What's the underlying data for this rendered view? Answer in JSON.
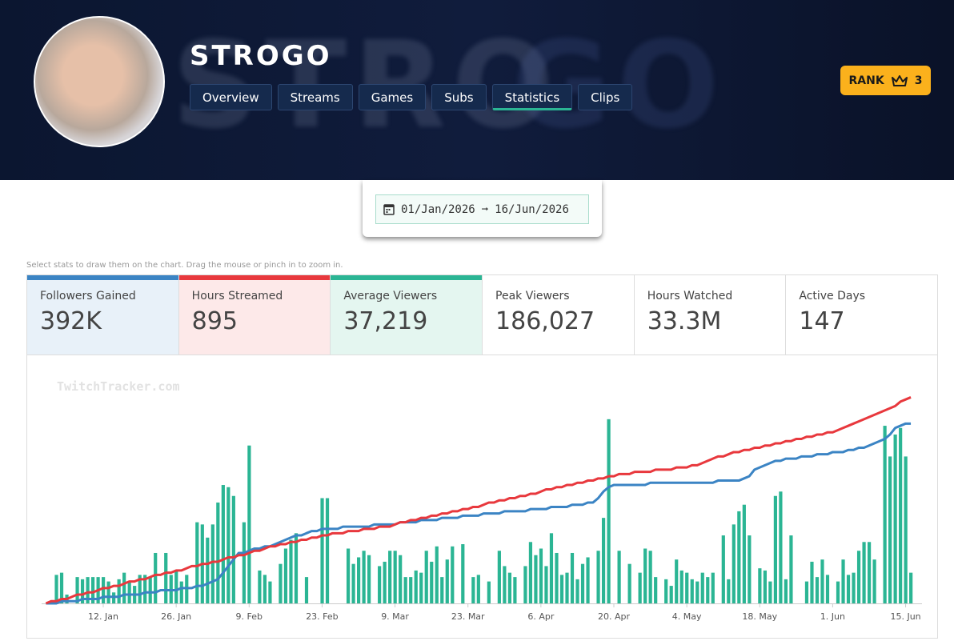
{
  "header": {
    "name": "STROGO",
    "tabs": [
      "Overview",
      "Streams",
      "Games",
      "Subs",
      "Statistics",
      "Clips"
    ],
    "active_tab": 4,
    "rank_label": "RANK",
    "rank": "3"
  },
  "date_range": {
    "start": "01/Jan/2026",
    "separator": "➞",
    "end": "16/Jun/2026"
  },
  "hint": "Select stats to draw them on the chart. Drag the mouse or pinch in to zoom in.",
  "stats": [
    {
      "label": "Followers Gained",
      "value": "392K"
    },
    {
      "label": "Hours Streamed",
      "value": "895"
    },
    {
      "label": "Average Viewers",
      "value": "37,219"
    },
    {
      "label": "Peak Viewers",
      "value": "186,027"
    },
    {
      "label": "Hours Watched",
      "value": "33.3M"
    },
    {
      "label": "Active Days",
      "value": "147"
    }
  ],
  "chart_data": {
    "type": "bar",
    "watermark": "TwitchTracker.com",
    "ylim": [
      0,
      100
    ],
    "categories": [
      null,
      null,
      null,
      null,
      null,
      null,
      null,
      null,
      null,
      null,
      null,
      "12. Jan",
      null,
      null,
      null,
      null,
      null,
      null,
      null,
      null,
      null,
      null,
      null,
      null,
      null,
      "26. Jan",
      null,
      null,
      null,
      null,
      null,
      null,
      null,
      null,
      null,
      null,
      null,
      null,
      null,
      "9. Feb",
      null,
      null,
      null,
      null,
      null,
      null,
      null,
      null,
      null,
      null,
      null,
      null,
      null,
      "23. Feb",
      null,
      null,
      null,
      null,
      null,
      null,
      null,
      null,
      null,
      null,
      null,
      null,
      null,
      "9. Mar",
      null,
      null,
      null,
      null,
      null,
      null,
      null,
      null,
      null,
      null,
      null,
      null,
      null,
      "23. Mar",
      null,
      null,
      null,
      null,
      null,
      null,
      null,
      null,
      null,
      null,
      null,
      null,
      null,
      "6. Apr",
      null,
      null,
      null,
      null,
      null,
      null,
      null,
      null,
      null,
      null,
      null,
      null,
      null,
      "20. Apr",
      null,
      null,
      null,
      null,
      null,
      null,
      null,
      null,
      null,
      null,
      null,
      null,
      null,
      "4. May",
      null,
      null,
      null,
      null,
      null,
      null,
      null,
      null,
      null,
      null,
      null,
      null,
      null,
      "18. May",
      null,
      null,
      null,
      null,
      null,
      null,
      null,
      null,
      null,
      null,
      null,
      null,
      null,
      "1. Jun",
      null,
      null,
      null,
      null,
      null,
      null,
      null,
      null,
      null,
      null,
      null,
      null,
      null,
      "15. Jun",
      null
    ],
    "series": [
      {
        "type": "line",
        "color": "#3b84c4",
        "values": [
          0,
          0,
          0,
          1,
          1,
          1,
          1,
          2,
          2,
          2,
          2,
          3,
          3,
          3,
          3,
          4,
          4,
          4,
          4,
          5,
          5,
          5,
          6,
          6,
          6,
          6,
          7,
          7,
          7,
          8,
          8,
          9,
          10,
          11,
          14,
          17,
          20,
          23,
          23,
          24,
          25,
          25,
          26,
          26,
          27,
          28,
          29,
          30,
          31,
          31,
          32,
          33,
          33,
          34,
          34,
          34,
          34,
          35,
          35,
          35,
          35,
          35,
          35,
          36,
          36,
          36,
          36,
          36,
          37,
          37,
          37,
          37,
          38,
          38,
          38,
          38,
          39,
          39,
          39,
          39,
          40,
          40,
          40,
          40,
          41,
          41,
          41,
          41,
          42,
          42,
          42,
          42,
          42,
          43,
          43,
          43,
          43,
          44,
          44,
          44,
          44,
          45,
          45,
          45,
          46,
          46,
          48,
          51,
          53,
          54,
          54,
          54,
          54,
          54,
          54,
          54,
          55,
          55,
          55,
          55,
          55,
          55,
          55,
          55,
          55,
          55,
          55,
          55,
          55,
          56,
          56,
          56,
          56,
          56,
          57,
          58,
          61,
          62,
          63,
          64,
          65,
          65,
          66,
          66,
          66,
          67,
          67,
          67,
          68,
          68,
          68,
          69,
          69,
          69,
          70,
          70,
          71,
          71,
          72,
          73,
          74,
          75,
          77,
          80,
          81,
          82,
          82
        ]
      },
      {
        "type": "line",
        "color": "#e8383d",
        "values": [
          0,
          1,
          1,
          2,
          2,
          3,
          4,
          4,
          5,
          5,
          6,
          7,
          7,
          8,
          8,
          9,
          10,
          10,
          11,
          11,
          12,
          13,
          13,
          14,
          14,
          15,
          15,
          16,
          17,
          17,
          18,
          18,
          19,
          19,
          20,
          21,
          21,
          22,
          22,
          23,
          24,
          24,
          25,
          26,
          26,
          27,
          27,
          28,
          28,
          29,
          29,
          30,
          30,
          31,
          31,
          32,
          32,
          32,
          33,
          33,
          33,
          34,
          34,
          34,
          35,
          35,
          35,
          36,
          37,
          37,
          38,
          38,
          39,
          39,
          40,
          40,
          41,
          41,
          42,
          42,
          43,
          43,
          44,
          44,
          45,
          46,
          46,
          47,
          47,
          48,
          48,
          49,
          49,
          50,
          50,
          51,
          52,
          52,
          53,
          53,
          54,
          54,
          55,
          55,
          56,
          56,
          57,
          57,
          58,
          58,
          59,
          59,
          59,
          60,
          60,
          60,
          60,
          61,
          61,
          61,
          61,
          62,
          62,
          62,
          63,
          63,
          64,
          65,
          66,
          67,
          67,
          68,
          69,
          69,
          70,
          70,
          71,
          71,
          72,
          72,
          73,
          73,
          74,
          74,
          75,
          75,
          76,
          76,
          77,
          77,
          78,
          78,
          79,
          80,
          81,
          82,
          83,
          84,
          85,
          86,
          87,
          88,
          89,
          90,
          92,
          93,
          94
        ]
      },
      {
        "type": "bar",
        "color": "#2bb594",
        "values": [
          0,
          0,
          13,
          14,
          4,
          0,
          12,
          11,
          12,
          12,
          12,
          12,
          10,
          5,
          11,
          14,
          10,
          8,
          13,
          13,
          12,
          23,
          0,
          23,
          13,
          15,
          10,
          13,
          0,
          37,
          36,
          30,
          36,
          46,
          54,
          53,
          49,
          0,
          37,
          72,
          0,
          15,
          13,
          10,
          0,
          18,
          25,
          29,
          32,
          0,
          12,
          0,
          0,
          48,
          48,
          0,
          0,
          0,
          25,
          18,
          21,
          24,
          22,
          0,
          17,
          19,
          24,
          24,
          22,
          12,
          12,
          15,
          14,
          24,
          19,
          26,
          12,
          20,
          26,
          0,
          27,
          0,
          12,
          13,
          0,
          10,
          0,
          24,
          17,
          14,
          12,
          0,
          17,
          28,
          22,
          25,
          17,
          32,
          23,
          13,
          14,
          23,
          11,
          18,
          21,
          0,
          24,
          39,
          84,
          0,
          24,
          0,
          18,
          0,
          14,
          25,
          24,
          12,
          0,
          11,
          8,
          20,
          15,
          14,
          11,
          10,
          14,
          12,
          14,
          0,
          31,
          11,
          36,
          42,
          45,
          31,
          0,
          16,
          15,
          10,
          49,
          51,
          11,
          31,
          0,
          0,
          10,
          19,
          12,
          20,
          13,
          0,
          10,
          20,
          13,
          14,
          24,
          28,
          28,
          20,
          0,
          81,
          67,
          77,
          80,
          67,
          14
        ]
      }
    ]
  }
}
